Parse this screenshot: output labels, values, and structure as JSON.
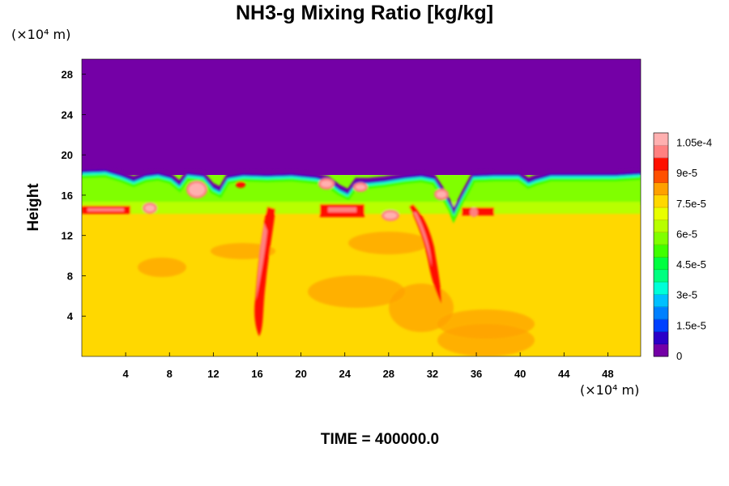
{
  "chart_data": {
    "type": "heatmap",
    "title": "NH3-g Mixing Ratio [kg/kg]",
    "ylabel": "Height",
    "x_unit_label": "(×10⁴ m)",
    "y_unit_label": "(×10⁴ m)",
    "time_label": "TIME = 400000.0",
    "xlim": [
      0,
      51
    ],
    "ylim": [
      0,
      29.5
    ],
    "x_ticks": [
      "4",
      "8",
      "12",
      "16",
      "20",
      "24",
      "28",
      "32",
      "36",
      "40",
      "44",
      "48"
    ],
    "y_ticks": [
      "4",
      "8",
      "12",
      "16",
      "20",
      "24",
      "28"
    ],
    "colorbar": {
      "vmin": 0,
      "vmax": 0.00011,
      "tick_labels": [
        "0",
        "1.5e-5",
        "3e-5",
        "4.5e-5",
        "6e-5",
        "7.5e-5",
        "9e-5",
        "1.05e-4"
      ],
      "colors": [
        "#7400a6",
        "#2b00c8",
        "#0040ff",
        "#0080ff",
        "#00c0ff",
        "#00ffd8",
        "#00ff80",
        "#00ff40",
        "#40ff00",
        "#80ff00",
        "#b8ff00",
        "#e8ff00",
        "#ffd800",
        "#ffa000",
        "#ff5000",
        "#ff1000",
        "#ff8080",
        "#ffb0b0"
      ]
    },
    "fields": {
      "upper_region": {
        "y_min": 18,
        "y_max": 29.5,
        "value": 0
      },
      "lower_region": {
        "y_min": 0,
        "y_max": 15,
        "value": 7.5e-05
      },
      "band_region": {
        "y_min": 15,
        "y_max": 18,
        "value": 6e-05
      },
      "peak_value": 0.00011
    }
  }
}
